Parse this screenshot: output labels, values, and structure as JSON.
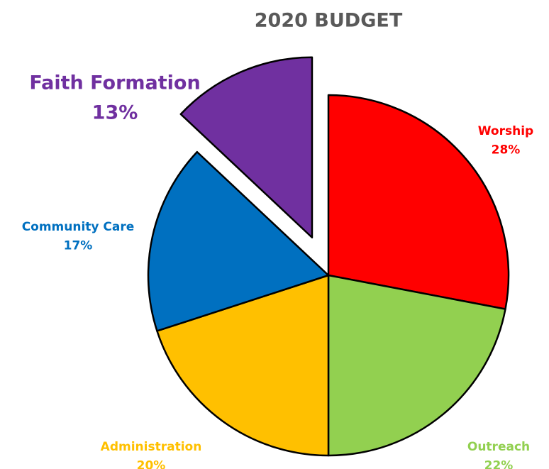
{
  "chart_data": {
    "type": "pie",
    "title": "2020 BUDGET",
    "categories": [
      "Worship",
      "Outreach",
      "Administration",
      "Community Care",
      "Faith Formation"
    ],
    "values": [
      28,
      22,
      20,
      17,
      13
    ],
    "value_labels": [
      "28%",
      "22%",
      "20%",
      "17%",
      "13%"
    ],
    "colors": [
      "#ff0000",
      "#92d050",
      "#ffc000",
      "#0070c0",
      "#7030a0"
    ],
    "exploded": [
      false,
      false,
      false,
      false,
      true
    ]
  }
}
